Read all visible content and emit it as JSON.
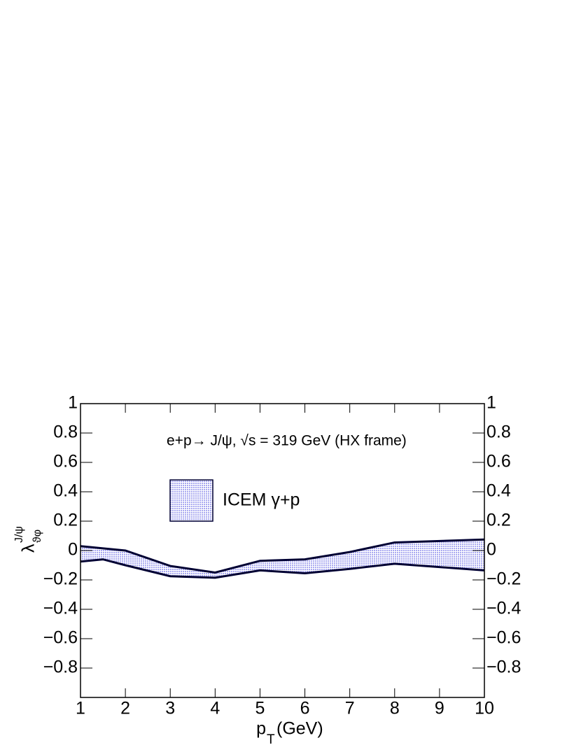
{
  "chart_data": {
    "type": "band",
    "annotation": "e+p→ J/ψ, √s = 319 GeV (HX frame)",
    "xlabel": {
      "symbol": "p",
      "sub": "T",
      "unit": "(GeV)"
    },
    "ylabel": {
      "symbol": "λ",
      "sup": "J/ψ",
      "sub": "ϑφ"
    },
    "x": [
      1,
      1.5,
      2,
      3,
      4,
      5,
      6,
      7,
      8,
      10
    ],
    "series": [
      {
        "name": "ICEM γ+p",
        "color": "#a8a8f0",
        "edge_color": "#000033",
        "high": [
          0.03,
          0.015,
          0.0,
          -0.105,
          -0.15,
          -0.07,
          -0.06,
          -0.01,
          0.055,
          0.075
        ],
        "low": [
          -0.075,
          -0.06,
          -0.1,
          -0.175,
          -0.185,
          -0.135,
          -0.155,
          -0.125,
          -0.09,
          -0.135
        ]
      }
    ],
    "xlim": [
      1,
      10
    ],
    "ylim": [
      -1,
      1
    ],
    "xticks": [
      1,
      2,
      3,
      4,
      5,
      6,
      7,
      8,
      9,
      10
    ],
    "yticks": [
      1,
      0.8,
      0.6,
      0.4,
      0.2,
      0,
      {
        "value": -0.2,
        "label": "−0.2"
      },
      {
        "value": -0.4,
        "label": "−0.4"
      },
      {
        "value": -0.6,
        "label": "−0.6"
      },
      {
        "value": -0.8,
        "label": "−0.8"
      }
    ],
    "grid": false
  }
}
